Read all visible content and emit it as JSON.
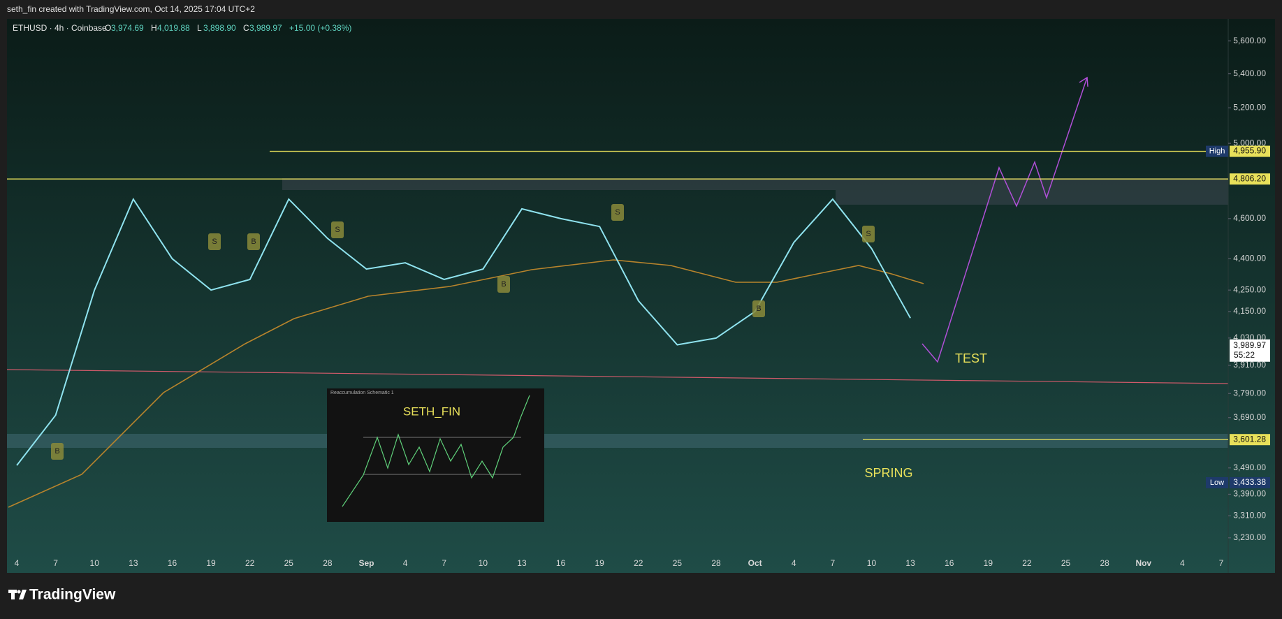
{
  "header": {
    "credit": "seth_fin created with TradingView.com, Oct 14, 2025 17:04 UTC+2",
    "symbol": "ETHUSD · 4h · Coinbase",
    "ohlc": [
      {
        "key": "O",
        "value": "3,974.69"
      },
      {
        "key": "H",
        "value": "4,019.88"
      },
      {
        "key": "L",
        "value": "3,898.90"
      },
      {
        "key": "C",
        "value": "3,989.97"
      }
    ],
    "change": "+15.00 (+0.38%)"
  },
  "footer": {
    "brand": "TradingView"
  },
  "chart_data": {
    "type": "line",
    "log_scale": true,
    "categories": [
      "4",
      "7",
      "10",
      "13",
      "16",
      "19",
      "22",
      "25",
      "28",
      "Sep",
      "4",
      "7",
      "10",
      "13",
      "16",
      "19",
      "22",
      "25",
      "28",
      "Oct",
      "4",
      "7",
      "10",
      "13",
      "16",
      "19",
      "22",
      "25",
      "28",
      "Nov",
      "4",
      "7"
    ],
    "series": [
      {
        "name": "ETHUSD",
        "color": "#8fe3ef",
        "values": [
          3500,
          3700,
          4250,
          4700,
          4400,
          4250,
          4300,
          4700,
          4500,
          4350,
          4380,
          4300,
          4350,
          4650,
          4600,
          4560,
          4200,
          4000,
          4030,
          4150,
          4480,
          4700,
          4450,
          4120,
          null,
          null,
          null,
          null,
          null,
          null,
          null,
          null
        ]
      }
    ],
    "ylim": [
      3180,
      5730
    ],
    "yticks": [
      {
        "value": 5600,
        "label": "5,600.00"
      },
      {
        "value": 5400,
        "label": "5,400.00"
      },
      {
        "value": 5200,
        "label": "5,200.00"
      },
      {
        "value": 5000,
        "label": "5,000.00"
      },
      {
        "value": 4600,
        "label": "4,600.00"
      },
      {
        "value": 4400,
        "label": "4,400.00"
      },
      {
        "value": 4250,
        "label": "4,250.00"
      },
      {
        "value": 4150,
        "label": "4,150.00"
      },
      {
        "value": 4030,
        "label": "4,030.00"
      },
      {
        "value": 3910,
        "label": "3,910.00"
      },
      {
        "value": 3790,
        "label": "3,790.00"
      },
      {
        "value": 3690,
        "label": "3,690.00"
      },
      {
        "value": 3490,
        "label": "3,490.00"
      },
      {
        "value": 3390,
        "label": "3,390.00"
      },
      {
        "value": 3310,
        "label": "3,310.00"
      },
      {
        "value": 3230,
        "label": "3,230.00"
      }
    ],
    "levels": [
      {
        "name": "High",
        "value": 4955.9,
        "label": "4,955.90",
        "color": "#e8e05a"
      },
      {
        "value": 4806.2,
        "label": "4,806.20",
        "color": "#e8e05a"
      },
      {
        "value": 3601.28,
        "label": "3,601.28",
        "color": "#e8e05a"
      },
      {
        "name": "Low",
        "value": 3433.38,
        "label": "3,433.38"
      }
    ],
    "current": {
      "value": 3989.97,
      "label": "3,989.97",
      "countdown": "55:22"
    },
    "annotations": [
      "TEST",
      "SPRING"
    ],
    "inset": {
      "title": "SETH_FIN",
      "caption": "Reaccumulation Schematic 1"
    },
    "signals": [
      "B",
      "S",
      "B",
      "S",
      "B",
      "S",
      "B",
      "S"
    ]
  }
}
